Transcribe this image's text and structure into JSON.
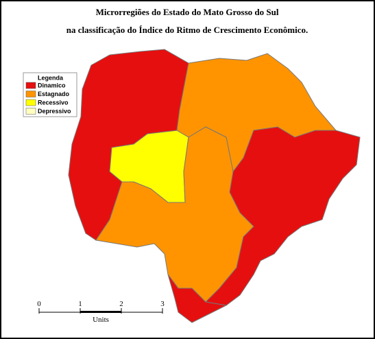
{
  "header": {
    "title_line_1": "Microrregiões  do Estado do Mato Grosso  do Sul",
    "title_line_2": "na classificação  do Índice do Ritmo de Crescimento  Econômico."
  },
  "legend": {
    "title": "Legenda",
    "entries": [
      {
        "label": "Dinamico",
        "color": "#e60f0f"
      },
      {
        "label": "Estagnado",
        "color": "#ff9400"
      },
      {
        "label": "Recessivo",
        "color": "#ffff00"
      },
      {
        "label": "Depressivo",
        "color": "#ffffc0"
      }
    ]
  },
  "scale_bar": {
    "ticks": [
      0,
      1,
      2,
      3
    ],
    "unit": "Units"
  }
}
